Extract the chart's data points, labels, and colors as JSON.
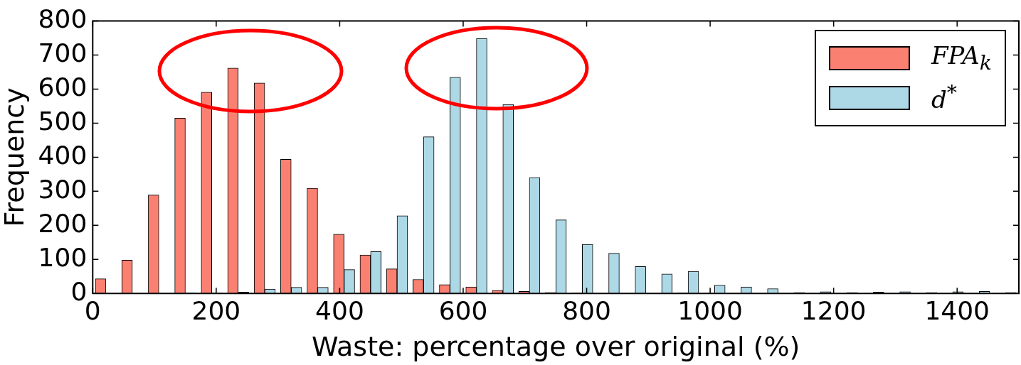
{
  "chart_data": {
    "type": "histogram",
    "xlabel": "Waste: percentage over original (%)",
    "ylabel": "Frequency",
    "bins": [
      0,
      42.86,
      85.71,
      128.57,
      171.43,
      214.29,
      257.14,
      300,
      342.86,
      385.71,
      428.57,
      471.43,
      514.29,
      557.14,
      600,
      642.86,
      685.71,
      728.57,
      771.43,
      814.29,
      857.14,
      900,
      942.86,
      985.71,
      1028.57,
      1071.43,
      1114.29,
      1157.14,
      1200,
      1242.86,
      1285.71,
      1328.57,
      1371.43,
      1414.29,
      1457.14,
      1500
    ],
    "series": [
      {
        "name": "FPA$_{k}$",
        "color": "#fa8072",
        "values": [
          43,
          98,
          289,
          515,
          591,
          662,
          618,
          394,
          309,
          174,
          113,
          72,
          41,
          26,
          19,
          9,
          6,
          3,
          2,
          0,
          0,
          0,
          2,
          1,
          0,
          0,
          0,
          0,
          0,
          0,
          0,
          0,
          0,
          0,
          0
        ]
      },
      {
        "name": "d$^{*}$",
        "color": "#add8e6",
        "values": [
          0,
          0,
          0,
          2,
          2,
          4,
          13,
          18,
          18,
          70,
          123,
          228,
          460,
          635,
          749,
          555,
          340,
          216,
          144,
          118,
          79,
          57,
          65,
          24,
          19,
          14,
          3,
          5,
          3,
          4,
          5,
          3,
          5,
          6,
          3
        ]
      }
    ],
    "xlim": [
      0,
      1500
    ],
    "xticks": [
      0,
      200,
      400,
      600,
      800,
      1000,
      1200,
      1400
    ],
    "ylim": [
      0,
      800
    ],
    "yticks": [
      0,
      100,
      200,
      300,
      400,
      500,
      600,
      700,
      800
    ],
    "grid": false,
    "legend": "top right"
  }
}
